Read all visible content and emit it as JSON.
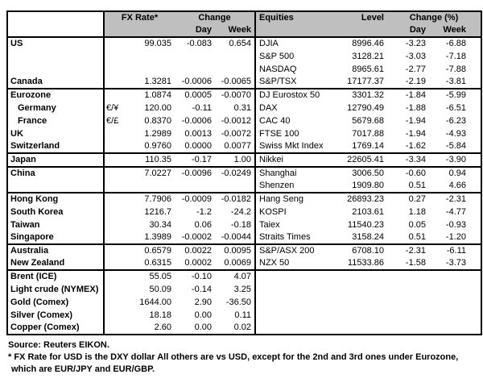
{
  "meta": {
    "header_bg": "#bfbfbf",
    "border_color": "#000000"
  },
  "header": {
    "fx_rate": "FX Rate*",
    "change": "Change",
    "day": "Day",
    "week": "Week",
    "equities": "Equities",
    "level": "Level",
    "change_pct": "Change (%)"
  },
  "rows": [
    {
      "name": "US",
      "pair": "",
      "fx": "99.035",
      "fxd": "-0.083",
      "fxw": "0.654",
      "eq": "DJIA",
      "lvl": "8996.46",
      "eqd": "-3.23",
      "eqw": "-6.88",
      "group": false,
      "indent": false
    },
    {
      "name": "",
      "pair": "",
      "fx": "",
      "fxd": "",
      "fxw": "",
      "eq": "S&P 500",
      "lvl": "3128.21",
      "eqd": "-3.03",
      "eqw": "-7.18",
      "group": false,
      "indent": false
    },
    {
      "name": "",
      "pair": "",
      "fx": "",
      "fxd": "",
      "fxw": "",
      "eq": "NASDAQ",
      "lvl": "8965.61",
      "eqd": "-2.77",
      "eqw": "-7.88",
      "group": false,
      "indent": false
    },
    {
      "name": "Canada",
      "pair": "",
      "fx": "1.3281",
      "fxd": "-0.0006",
      "fxw": "-0.0065",
      "eq": "S&P/TSX",
      "lvl": "17177.37",
      "eqd": "-2.19",
      "eqw": "-3.81",
      "group": false,
      "indent": false
    },
    {
      "name": "Eurozone",
      "pair": "",
      "fx": "1.0874",
      "fxd": "0.0005",
      "fxw": "-0.0070",
      "eq": "DJ Eurostox 50",
      "lvl": "3301.32",
      "eqd": "-1.84",
      "eqw": "-5.99",
      "group": true,
      "indent": false
    },
    {
      "name": "Germany",
      "pair": "€/¥",
      "fx": "120.00",
      "fxd": "-0.11",
      "fxw": "0.31",
      "eq": "DAX",
      "lvl": "12790.49",
      "eqd": "-1.88",
      "eqw": "-6.51",
      "group": false,
      "indent": true
    },
    {
      "name": "France",
      "pair": "€/£",
      "fx": "0.8370",
      "fxd": "-0.0006",
      "fxw": "-0.0012",
      "eq": "CAC 40",
      "lvl": "5679.68",
      "eqd": "-1.94",
      "eqw": "-6.23",
      "group": false,
      "indent": true
    },
    {
      "name": "UK",
      "pair": "",
      "fx": "1.2989",
      "fxd": "0.0013",
      "fxw": "-0.0072",
      "eq": "FTSE 100",
      "lvl": "7017.88",
      "eqd": "-1.94",
      "eqw": "-4.93",
      "group": false,
      "indent": false
    },
    {
      "name": "Switzerland",
      "pair": "",
      "fx": "0.9760",
      "fxd": "0.0000",
      "fxw": "0.0077",
      "eq": "Swiss Mkt Index",
      "lvl": "1769.14",
      "eqd": "-1.62",
      "eqw": "-5.84",
      "group": false,
      "indent": false
    },
    {
      "name": "Japan",
      "pair": "",
      "fx": "110.35",
      "fxd": "-0.17",
      "fxw": "1.00",
      "eq": "Nikkei",
      "lvl": "22605.41",
      "eqd": "-3.34",
      "eqw": "-3.90",
      "group": true,
      "indent": false
    },
    {
      "name": "China",
      "pair": "",
      "fx": "7.0227",
      "fxd": "-0.0096",
      "fxw": "-0.0249",
      "eq": "Shanghai",
      "lvl": "3006.50",
      "eqd": "-0.60",
      "eqw": "0.94",
      "group": true,
      "indent": false
    },
    {
      "name": "",
      "pair": "",
      "fx": "",
      "fxd": "",
      "fxw": "",
      "eq": "Shenzen",
      "lvl": "1909.80",
      "eqd": "0.51",
      "eqw": "4.66",
      "group": false,
      "indent": false
    },
    {
      "name": "Hong Kong",
      "pair": "",
      "fx": "7.7906",
      "fxd": "-0.0009",
      "fxw": "-0.0182",
      "eq": "Hang Seng",
      "lvl": "26893.23",
      "eqd": "0.27",
      "eqw": "-2.31",
      "group": true,
      "indent": false
    },
    {
      "name": "South Korea",
      "pair": "",
      "fx": "1216.7",
      "fxd": "-1.2",
      "fxw": "-24.2",
      "eq": "KOSPI",
      "lvl": "2103.61",
      "eqd": "1.18",
      "eqw": "-4.77",
      "group": false,
      "indent": false
    },
    {
      "name": "Taiwan",
      "pair": "",
      "fx": "30.34",
      "fxd": "0.06",
      "fxw": "-0.18",
      "eq": "Taiex",
      "lvl": "11540.23",
      "eqd": "0.05",
      "eqw": "-0.93",
      "group": false,
      "indent": false
    },
    {
      "name": "Singapore",
      "pair": "",
      "fx": "1.3989",
      "fxd": "-0.0002",
      "fxw": "-0.0044",
      "eq": "Straits Times",
      "lvl": "3158.24",
      "eqd": "0.51",
      "eqw": "-1.20",
      "group": false,
      "indent": false
    },
    {
      "name": "Australia",
      "pair": "",
      "fx": "0.6579",
      "fxd": "0.0022",
      "fxw": "0.0095",
      "eq": "S&P/ASX 200",
      "lvl": "6708.10",
      "eqd": "-2.31",
      "eqw": "-6.11",
      "group": true,
      "indent": false
    },
    {
      "name": "New Zealand",
      "pair": "",
      "fx": "0.6315",
      "fxd": "0.0002",
      "fxw": "0.0069",
      "eq": "NZX 50",
      "lvl": "11533.86",
      "eqd": "-1.58",
      "eqw": "-3.73",
      "group": false,
      "indent": false
    },
    {
      "name": "Brent (ICE)",
      "pair": "",
      "fx": "55.05",
      "fxd": "-0.10",
      "fxw": "4.07",
      "eq": "",
      "lvl": "",
      "eqd": "",
      "eqw": "",
      "group": true,
      "indent": false
    },
    {
      "name": "Light crude (NYMEX)",
      "pair": "",
      "fx": "50.09",
      "fxd": "-0.14",
      "fxw": "3.25",
      "eq": "",
      "lvl": "",
      "eqd": "",
      "eqw": "",
      "group": false,
      "indent": false
    },
    {
      "name": "Gold (Comex)",
      "pair": "",
      "fx": "1644.00",
      "fxd": "2.90",
      "fxw": "-36.50",
      "eq": "",
      "lvl": "",
      "eqd": "",
      "eqw": "",
      "group": false,
      "indent": false
    },
    {
      "name": "Silver (Comex)",
      "pair": "",
      "fx": "18.18",
      "fxd": "0.00",
      "fxw": "0.11",
      "eq": "",
      "lvl": "",
      "eqd": "",
      "eqw": "",
      "group": false,
      "indent": false
    },
    {
      "name": "Copper (Comex)",
      "pair": "",
      "fx": "2.60",
      "fxd": "0.00",
      "fxw": "0.02",
      "eq": "",
      "lvl": "",
      "eqd": "",
      "eqw": "",
      "group": false,
      "indent": false
    }
  ],
  "footer": {
    "source": "Source:  Reuters EIKON.",
    "note1": "* FX Rate for USD is the DXY dollar  All others are vs USD, except for the 2nd and 3rd ones under Eurozone,",
    "note2": "which are EUR/JPY and EUR/GBP."
  }
}
